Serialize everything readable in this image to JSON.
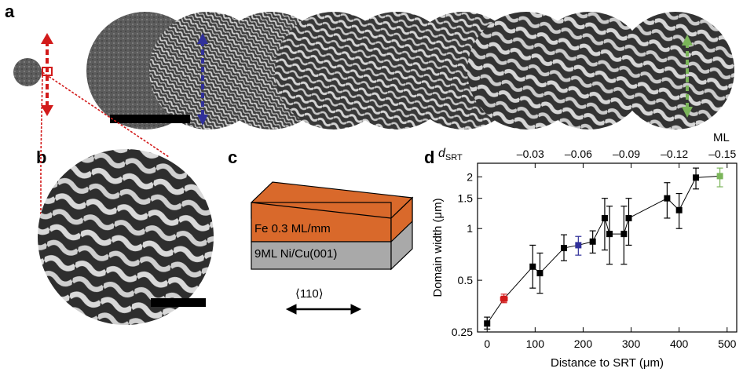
{
  "panels": {
    "a": {
      "letter": "a"
    },
    "b": {
      "letter": "b"
    },
    "c": {
      "letter": "c",
      "layer_top": "Fe 0.3 ML/mm",
      "layer_bottom": "9ML Ni/Cu(001)",
      "direction_label": "⟨110⟩"
    },
    "d": {
      "letter": "d"
    }
  },
  "colors": {
    "fe_layer": "#d9692b",
    "substrate": "#a9a9a9",
    "red_marker": "#d21a1a",
    "blue_marker": "#30309a",
    "green_marker": "#7bb55a"
  },
  "chart_data": {
    "type": "scatter",
    "xlabel": "Distance to SRT (μm)",
    "ylabel": "Domain width (μm)",
    "yscale": "log",
    "xlim": [
      -20,
      520
    ],
    "ylim": [
      0.25,
      2.4
    ],
    "x_ticks": [
      0,
      100,
      200,
      300,
      400,
      500
    ],
    "y_ticks": [
      0.25,
      0.5,
      1,
      1.5,
      2
    ],
    "y_tick_labels": [
      "0.25",
      "0.5",
      "1",
      "1.5",
      "2"
    ],
    "top_axis": {
      "label_main": "d",
      "label_sub": "SRT",
      "unit": "ML",
      "tick_labels": [
        "–0.03",
        "–0.06",
        "–0.09",
        "–0.12",
        "–0.15"
      ],
      "tick_x": [
        100,
        200,
        300,
        400,
        500
      ]
    },
    "points": [
      {
        "x": 0,
        "y": 0.28,
        "yerr": [
          0.26,
          0.305
        ],
        "color": "black"
      },
      {
        "x": 35,
        "y": 0.39,
        "yerr": [
          0.37,
          0.415
        ],
        "xerr": [
          28,
          42
        ],
        "color": "red"
      },
      {
        "x": 95,
        "y": 0.6,
        "yerr": [
          0.45,
          0.8
        ],
        "color": "black"
      },
      {
        "x": 110,
        "y": 0.55,
        "yerr": [
          0.42,
          0.72
        ],
        "color": "black"
      },
      {
        "x": 160,
        "y": 0.77,
        "yerr": [
          0.65,
          0.92
        ],
        "color": "black"
      },
      {
        "x": 190,
        "y": 0.8,
        "yerr": [
          0.7,
          0.9
        ],
        "color": "blue"
      },
      {
        "x": 220,
        "y": 0.84,
        "yerr": [
          0.72,
          0.97
        ],
        "color": "black"
      },
      {
        "x": 245,
        "y": 1.15,
        "yerr": [
          0.75,
          1.5
        ],
        "color": "black"
      },
      {
        "x": 255,
        "y": 0.93,
        "yerr": [
          0.62,
          1.35
        ],
        "color": "black"
      },
      {
        "x": 285,
        "y": 0.93,
        "yerr": [
          0.62,
          1.35
        ],
        "color": "black"
      },
      {
        "x": 295,
        "y": 1.15,
        "yerr": [
          0.8,
          1.5
        ],
        "color": "black"
      },
      {
        "x": 375,
        "y": 1.5,
        "yerr": [
          1.15,
          1.85
        ],
        "color": "black"
      },
      {
        "x": 400,
        "y": 1.28,
        "yerr": [
          1.0,
          1.6
        ],
        "color": "black"
      },
      {
        "x": 435,
        "y": 1.98,
        "yerr": [
          1.7,
          2.25
        ],
        "color": "black"
      },
      {
        "x": 485,
        "y": 2.02,
        "yerr": [
          1.75,
          2.25
        ],
        "color": "green"
      }
    ]
  }
}
